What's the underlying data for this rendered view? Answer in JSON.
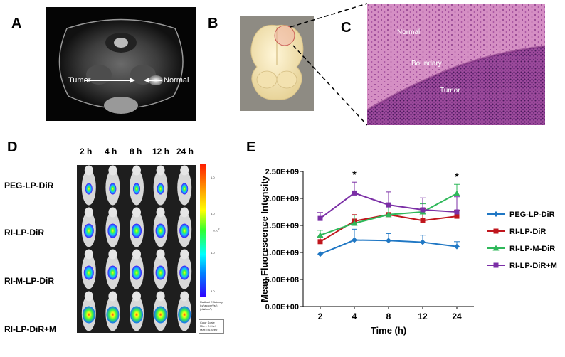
{
  "panel_labels": {
    "a": "A",
    "b": "B",
    "c": "C",
    "d": "D",
    "e": "E"
  },
  "panel_a": {
    "tumor_label": "Tumor",
    "normal_label": "Normal"
  },
  "panel_c": {
    "normal_label": "Normal",
    "boundary_label": "Boundary",
    "tumor_label": "Tumor"
  },
  "panel_d": {
    "time_headers": [
      "2 h",
      "4 h",
      "8 h",
      "12 h",
      "24 h"
    ],
    "row_labels": [
      "PEG-LP-DiR",
      "RI-LP-DiR",
      "RI-M-LP-DiR",
      "RI-LP-DiR+M"
    ],
    "colorbar": {
      "ticks": [
        "6.0",
        "5.0",
        "4.0",
        "3.0"
      ],
      "exponent": "x10",
      "exponent_power": "9",
      "units_lines": [
        "Radiant Efficiency",
        "(p/sec/cm²/sr)",
        "(µW/cm²)"
      ],
      "scale_lines": [
        "Color Scale",
        "Min = 2.24e9",
        "Max = 6.42e9"
      ]
    }
  },
  "chart_data": {
    "type": "line",
    "xlabel": "Time (h)",
    "ylabel": "Mean Fluorescence Intensity",
    "categories": [
      "2",
      "4",
      "8",
      "12",
      "24"
    ],
    "yticks": [
      "0.00E+00",
      "5.00E+08",
      "1.00E+09",
      "1.50E+09",
      "2.00E+09",
      "2.50E+09"
    ],
    "ylim": [
      0,
      2500000000
    ],
    "series": [
      {
        "name": "PEG-LP-DiR",
        "color": "#1f77c4",
        "marker": "diamond",
        "values": [
          970000000,
          1230000000,
          1220000000,
          1190000000,
          1110000000
        ],
        "errors": [
          0,
          200000000,
          130000000,
          130000000,
          90000000
        ]
      },
      {
        "name": "RI-LP-DiR",
        "color": "#c0161d",
        "marker": "square",
        "values": [
          1200000000,
          1580000000,
          1700000000,
          1590000000,
          1670000000
        ],
        "errors": [
          90000000,
          120000000,
          160000000,
          220000000,
          110000000
        ]
      },
      {
        "name": "RI-LP-M-DiR",
        "color": "#2fb85a",
        "marker": "triangle",
        "values": [
          1320000000,
          1540000000,
          1700000000,
          1750000000,
          2090000000
        ],
        "errors": [
          90000000,
          150000000,
          150000000,
          150000000,
          170000000
        ]
      },
      {
        "name": "RI-LP-DiR+M",
        "color": "#7b2fa6",
        "marker": "square",
        "values": [
          1630000000,
          2100000000,
          1880000000,
          1790000000,
          1750000000
        ],
        "errors": [
          110000000,
          200000000,
          240000000,
          220000000,
          280000000
        ]
      }
    ],
    "annotations": [
      {
        "category": "4",
        "text": "*"
      },
      {
        "category": "24",
        "text": "*"
      }
    ],
    "legend_position": "right",
    "grid": false
  }
}
